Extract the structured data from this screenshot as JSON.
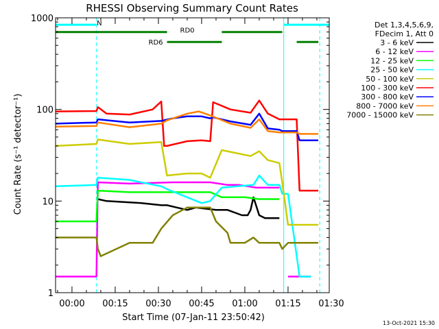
{
  "chart_data": {
    "type": "line",
    "title": "RHESSI Observing Summary Count Rates",
    "xlabel": "Start Time (07-Jan-11 23:50:42)",
    "ylabel": "Count Rate (s⁻¹ detector⁻¹)",
    "ylim": [
      1,
      1000
    ],
    "yscale": "log",
    "xlim_minutes": [
      -5.7,
      89.3
    ],
    "x_ticks": [
      {
        "m": 0,
        "label": "00:00"
      },
      {
        "m": 15,
        "label": "00:15"
      },
      {
        "m": 30,
        "label": "00:30"
      },
      {
        "m": 45,
        "label": "00:45"
      },
      {
        "m": 60,
        "label": "01:00"
      },
      {
        "m": 75,
        "label": "01:15"
      },
      {
        "m": 90,
        "label": "01:30"
      }
    ],
    "y_ticks": [
      {
        "v": 1,
        "label": "1"
      },
      {
        "v": 10,
        "label": "10"
      },
      {
        "v": 100,
        "label": "100"
      },
      {
        "v": 1000,
        "label": "1000"
      }
    ],
    "legend_header": [
      "Det 1,3,4,5,6,9,",
      "FDecim 1, Att 0"
    ],
    "legend_position": "right",
    "series": [
      {
        "name": "3 - 6 keV",
        "color": "#000000",
        "x": [
          8.5,
          9,
          12,
          24,
          31,
          33,
          40,
          43,
          50,
          54,
          59,
          61,
          62,
          63,
          65,
          67,
          70,
          72,
          78
        ],
        "y": [
          null,
          10.5,
          10,
          9.5,
          9,
          9,
          8,
          8.5,
          8,
          8,
          7,
          7,
          8,
          11,
          7,
          6.5,
          6.5,
          6.5,
          null
        ]
      },
      {
        "name": "6 - 12 keV",
        "color": "#ff00ff",
        "x": [
          -5.7,
          8,
          8.5,
          9,
          20,
          35,
          48,
          54,
          58,
          64,
          68,
          72,
          73,
          75,
          80,
          83,
          85.5
        ],
        "y": [
          1.5,
          1.5,
          1.5,
          16,
          15.5,
          16,
          16,
          15,
          15,
          14,
          14,
          14,
          null,
          1.5,
          1.5,
          1.5,
          null
        ]
      },
      {
        "name": "12 - 25 keV",
        "color": "#00ff00",
        "x": [
          -5.7,
          8.5,
          9,
          20,
          35,
          48,
          52,
          60,
          65,
          68,
          72,
          73
        ],
        "y": [
          6,
          6,
          13,
          12.5,
          12.5,
          12.5,
          11,
          11,
          10.5,
          10.5,
          10.5,
          null
        ]
      },
      {
        "name": "25 - 50 keV",
        "color": "#00ffff",
        "x": [
          -5.7,
          8.5,
          9,
          20,
          31,
          33,
          40,
          45,
          48,
          52,
          63,
          65,
          68,
          72,
          73,
          75,
          79,
          83,
          85.5
        ],
        "y": [
          14.5,
          15,
          18,
          17,
          14.5,
          13.5,
          11,
          9.5,
          10,
          14,
          15,
          19,
          15,
          15,
          12,
          12,
          1.5,
          1.5,
          null
        ]
      },
      {
        "name": "50 - 100 keV",
        "color": "#cccc00",
        "x": [
          -5.7,
          8.5,
          9,
          20,
          31,
          33,
          40,
          45,
          48,
          52,
          62,
          65,
          68,
          72,
          73,
          75,
          80,
          85.5
        ],
        "y": [
          40,
          42,
          47,
          42,
          44,
          19,
          20,
          20,
          18,
          36,
          31,
          35,
          28,
          26,
          16,
          5.5,
          5.5,
          5.5
        ]
      },
      {
        "name": "100 - 300 keV",
        "color": "#ff0000",
        "x": [
          -5.7,
          8.5,
          9,
          12,
          20,
          28,
          31,
          32,
          33,
          40,
          45,
          48,
          49,
          55,
          62,
          65,
          68,
          72,
          73,
          78,
          79,
          85.5
        ],
        "y": [
          95,
          96,
          106,
          90,
          88,
          100,
          122,
          40,
          40,
          45,
          46,
          45,
          120,
          100,
          92,
          125,
          90,
          78,
          78,
          78,
          13,
          13
        ]
      },
      {
        "name": "300 - 800 keV",
        "color": "#0000ff",
        "x": [
          -5.7,
          8.5,
          9,
          20,
          31,
          35,
          40,
          45,
          48,
          49,
          55,
          62,
          65,
          68,
          72,
          73,
          78,
          79,
          85.5
        ],
        "y": [
          70,
          72,
          78,
          72,
          75,
          80,
          84,
          84,
          80,
          82,
          74,
          68,
          90,
          62,
          60,
          58,
          58,
          46,
          46
        ]
      },
      {
        "name": "800 - 7000 keV",
        "color": "#ff8000",
        "x": [
          -5.7,
          8.5,
          9,
          20,
          31,
          33,
          40,
          44,
          48,
          55,
          62,
          65,
          68,
          72,
          73,
          78,
          79,
          85.5
        ],
        "y": [
          65,
          66,
          72,
          64,
          70,
          76,
          90,
          95,
          86,
          70,
          63,
          78,
          58,
          56,
          56,
          56,
          54,
          54
        ]
      },
      {
        "name": "7000 - 15000 keV",
        "color": "#808000",
        "x": [
          -5.7,
          8.5,
          9,
          10,
          20,
          28,
          31,
          35,
          40,
          45,
          48,
          50,
          54,
          55,
          60,
          63,
          65,
          67,
          72,
          73,
          75,
          85.5
        ],
        "y": [
          4,
          4,
          3,
          2.5,
          3.5,
          3.5,
          5,
          7,
          8.5,
          8.5,
          8.5,
          6,
          4.5,
          3.5,
          3.5,
          4,
          3.5,
          3.5,
          3.5,
          3,
          3.5,
          3.5
        ]
      }
    ],
    "status_bars": [
      {
        "label": "N",
        "color": "#00ffff",
        "x": [
          -5.7,
          8.5
        ],
        "y": 840
      },
      {
        "label": "",
        "color": "#00ffff",
        "x": [
          73.5,
          89.3
        ],
        "y": 840
      },
      {
        "label": "RD0",
        "color": "#008000",
        "x": [
          -5.7,
          33
        ],
        "y": 700
      },
      {
        "label": "",
        "color": "#008000",
        "x": [
          52,
          73
        ],
        "y": 700
      },
      {
        "label": "RD6",
        "color": "#008000",
        "x": [
          33,
          52
        ],
        "y": 545
      },
      {
        "label": "",
        "color": "#008000",
        "x": [
          78,
          85.5
        ],
        "y": 545
      }
    ],
    "markers": [
      {
        "color": "#00ffff",
        "style": "dashed",
        "x": 8.5
      },
      {
        "color": "#00ffff",
        "style": "solid",
        "x": 73.5
      },
      {
        "color": "#00ffff",
        "style": "dashed",
        "x": 86
      }
    ]
  },
  "timestamp": "13-Oct-2021 15:30"
}
